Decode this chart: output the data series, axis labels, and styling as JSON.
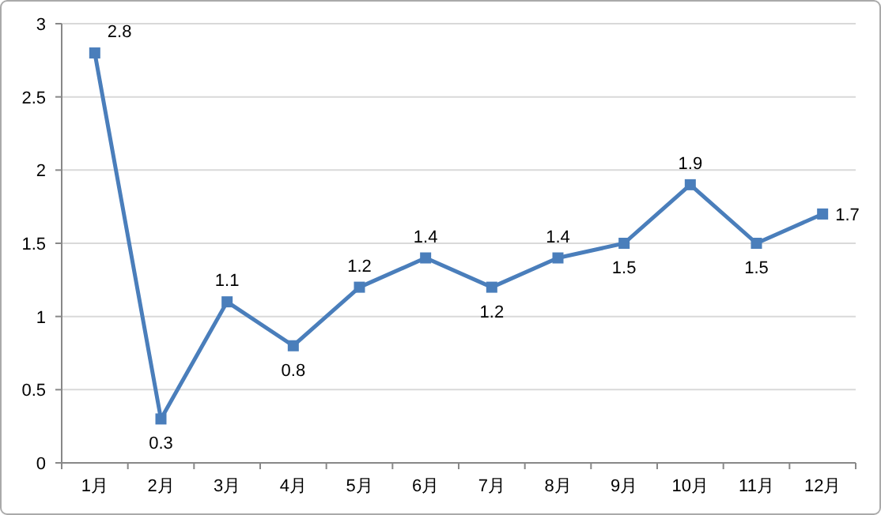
{
  "chart_data": {
    "type": "line",
    "categories": [
      "1月",
      "2月",
      "3月",
      "4月",
      "5月",
      "6月",
      "7月",
      "8月",
      "9月",
      "10月",
      "11月",
      "12月"
    ],
    "series": [
      {
        "color": "#4a7ebb",
        "values": [
          2.8,
          0.3,
          1.1,
          0.8,
          1.2,
          1.4,
          1.2,
          1.4,
          1.5,
          1.9,
          1.5,
          1.7
        ]
      }
    ],
    "ylim": [
      0,
      3
    ],
    "yticks": [
      0,
      0.5,
      1,
      1.5,
      2,
      2.5,
      3
    ],
    "grid": "y",
    "marker": "square",
    "line_style": "solid",
    "data_labels": true
  }
}
